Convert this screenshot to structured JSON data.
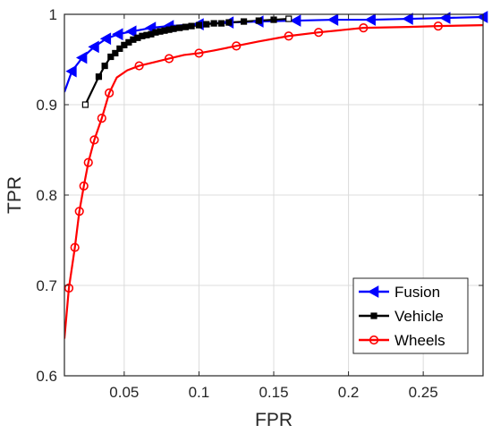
{
  "chart_data": {
    "type": "line",
    "title": "",
    "xlabel": "FPR",
    "ylabel": "TPR",
    "xlim": [
      0.01,
      0.29
    ],
    "ylim": [
      0.6,
      1.0
    ],
    "xticks": [
      0.05,
      0.1,
      0.15,
      0.2,
      0.25
    ],
    "xtick_labels": [
      "0.05",
      "0.1",
      "0.15",
      "0.2",
      "0.25"
    ],
    "yticks": [
      0.6,
      0.7,
      0.8,
      0.9,
      1.0
    ],
    "ytick_labels": [
      "0.6",
      "0.7",
      "0.8",
      "0.9",
      "1"
    ],
    "grid": true,
    "legend_position": "bottom-right",
    "series": [
      {
        "name": "Fusion",
        "color": "#0000ff",
        "marker": "left-triangle",
        "x": [
          0.01,
          0.015,
          0.022,
          0.03,
          0.038,
          0.046,
          0.055,
          0.068,
          0.08,
          0.1,
          0.12,
          0.14,
          0.165,
          0.19,
          0.215,
          0.24,
          0.265,
          0.29
        ],
        "y": [
          0.914,
          0.937,
          0.952,
          0.964,
          0.973,
          0.978,
          0.981,
          0.985,
          0.987,
          0.989,
          0.991,
          0.992,
          0.993,
          0.994,
          0.994,
          0.995,
          0.996,
          0.997
        ],
        "marker_indices": [
          1,
          2,
          3,
          4,
          5,
          6,
          7,
          8,
          9,
          10,
          11,
          12,
          13,
          14,
          15,
          16,
          17
        ]
      },
      {
        "name": "Vehicle",
        "color": "#000000",
        "marker": "square",
        "x": [
          0.024,
          0.033,
          0.037,
          0.041,
          0.044,
          0.047,
          0.05,
          0.053,
          0.056,
          0.059,
          0.062,
          0.065,
          0.068,
          0.071,
          0.074,
          0.077,
          0.08,
          0.083,
          0.087,
          0.091,
          0.095,
          0.1,
          0.105,
          0.11,
          0.115,
          0.12,
          0.13,
          0.14,
          0.15,
          0.16
        ],
        "y": [
          0.9,
          0.931,
          0.943,
          0.953,
          0.957,
          0.962,
          0.966,
          0.969,
          0.972,
          0.974,
          0.976,
          0.977,
          0.978,
          0.98,
          0.981,
          0.982,
          0.983,
          0.984,
          0.985,
          0.986,
          0.987,
          0.988,
          0.989,
          0.99,
          0.99,
          0.991,
          0.992,
          0.993,
          0.994,
          0.995
        ],
        "marker_indices": [
          0,
          1,
          2,
          3,
          4,
          5,
          6,
          7,
          8,
          9,
          10,
          11,
          12,
          13,
          14,
          15,
          16,
          17,
          18,
          19,
          20,
          21,
          22,
          23,
          24,
          25,
          26,
          27,
          28,
          29
        ]
      },
      {
        "name": "Wheels",
        "color": "#ff0000",
        "marker": "circle",
        "x": [
          0.01,
          0.013,
          0.017,
          0.02,
          0.023,
          0.026,
          0.03,
          0.035,
          0.04,
          0.045,
          0.052,
          0.06,
          0.07,
          0.08,
          0.09,
          0.1,
          0.11,
          0.125,
          0.14,
          0.16,
          0.18,
          0.21,
          0.24,
          0.26,
          0.29
        ],
        "y": [
          0.641,
          0.697,
          0.742,
          0.782,
          0.81,
          0.836,
          0.861,
          0.885,
          0.913,
          0.93,
          0.938,
          0.943,
          0.947,
          0.951,
          0.955,
          0.957,
          0.96,
          0.965,
          0.97,
          0.976,
          0.98,
          0.985,
          0.986,
          0.987,
          0.988
        ],
        "marker_indices": [
          1,
          2,
          3,
          4,
          5,
          6,
          7,
          8,
          11,
          13,
          15,
          17,
          19,
          20,
          21,
          23
        ]
      }
    ]
  }
}
